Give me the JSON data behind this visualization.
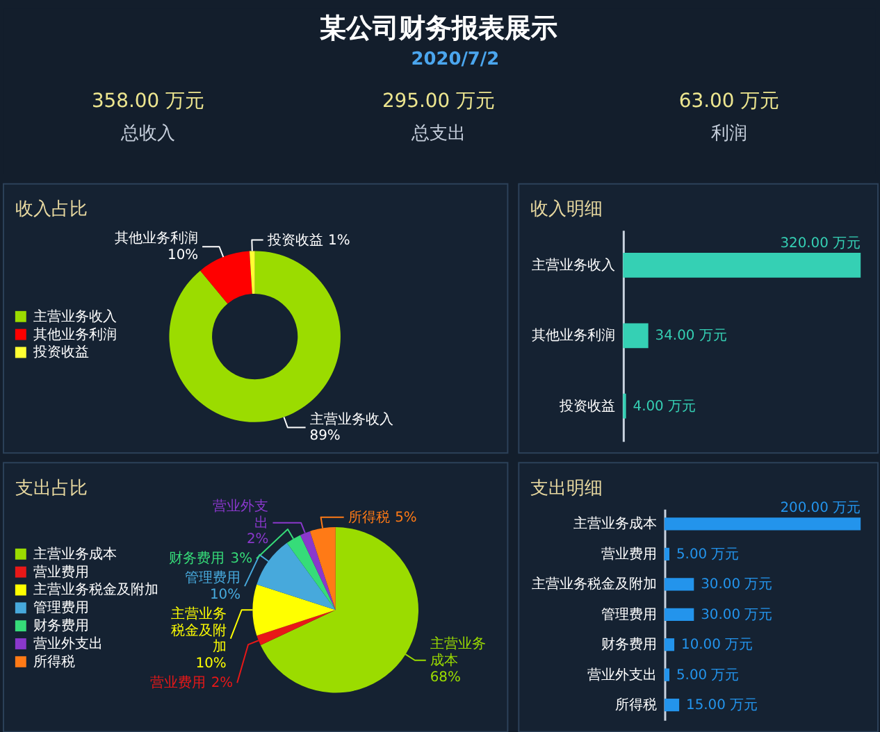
{
  "chart_data": [
    {
      "type": "other",
      "title": "某公司财务报表展示",
      "subtitle": "2020/7/2",
      "categories": [
        "总收入",
        "总支出",
        "利润"
      ],
      "value_labels": [
        "358.00 万元",
        "295.00 万元",
        "63.00 万元"
      ]
    },
    {
      "type": "donut",
      "title": "收入占比",
      "categories": [
        "主营业务收入",
        "其他业务利润",
        "投资收益"
      ],
      "values": [
        89,
        10,
        1
      ],
      "colors": [
        "#9bdc00",
        "#ff0000",
        "#ffff33"
      ],
      "value_labels": [
        "89%",
        "10%",
        "1%"
      ],
      "legend": "left"
    },
    {
      "type": "bar",
      "title": "收入明细",
      "orientation": "horizontal",
      "categories": [
        "主营业务收入",
        "其他业务利润",
        "投资收益"
      ],
      "values": [
        320,
        34,
        4
      ],
      "color": "#35d0b4",
      "value_labels": [
        "320.00 万元",
        "34.00 万元",
        "4.00 万元"
      ]
    },
    {
      "type": "pie",
      "title": "支出占比",
      "categories": [
        "主营业务成本",
        "营业费用",
        "主营业务税金及附加",
        "管理费用",
        "财务费用",
        "营业外支出",
        "所得税"
      ],
      "values": [
        68,
        2,
        10,
        10,
        3,
        2,
        5
      ],
      "colors": [
        "#9bdc00",
        "#e81818",
        "#ffff00",
        "#47a9dc",
        "#36dc79",
        "#8a38cc",
        "#ff7a16"
      ],
      "value_labels": [
        "68%",
        "2%",
        "10%",
        "10%",
        "3%",
        "2%",
        "5%"
      ],
      "legend": "left"
    },
    {
      "type": "bar",
      "title": "支出明细",
      "orientation": "horizontal",
      "categories": [
        "主营业务成本",
        "营业费用",
        "主营业务税金及附加",
        "管理费用",
        "财务费用",
        "营业外支出",
        "所得税"
      ],
      "values": [
        200,
        5,
        30,
        30,
        10,
        5,
        15
      ],
      "color": "#2394ec",
      "value_labels": [
        "200.00 万元",
        "5.00 万元",
        "30.00 万元",
        "30.00 万元",
        "10.00 万元",
        "5.00 万元",
        "15.00 万元"
      ]
    }
  ]
}
